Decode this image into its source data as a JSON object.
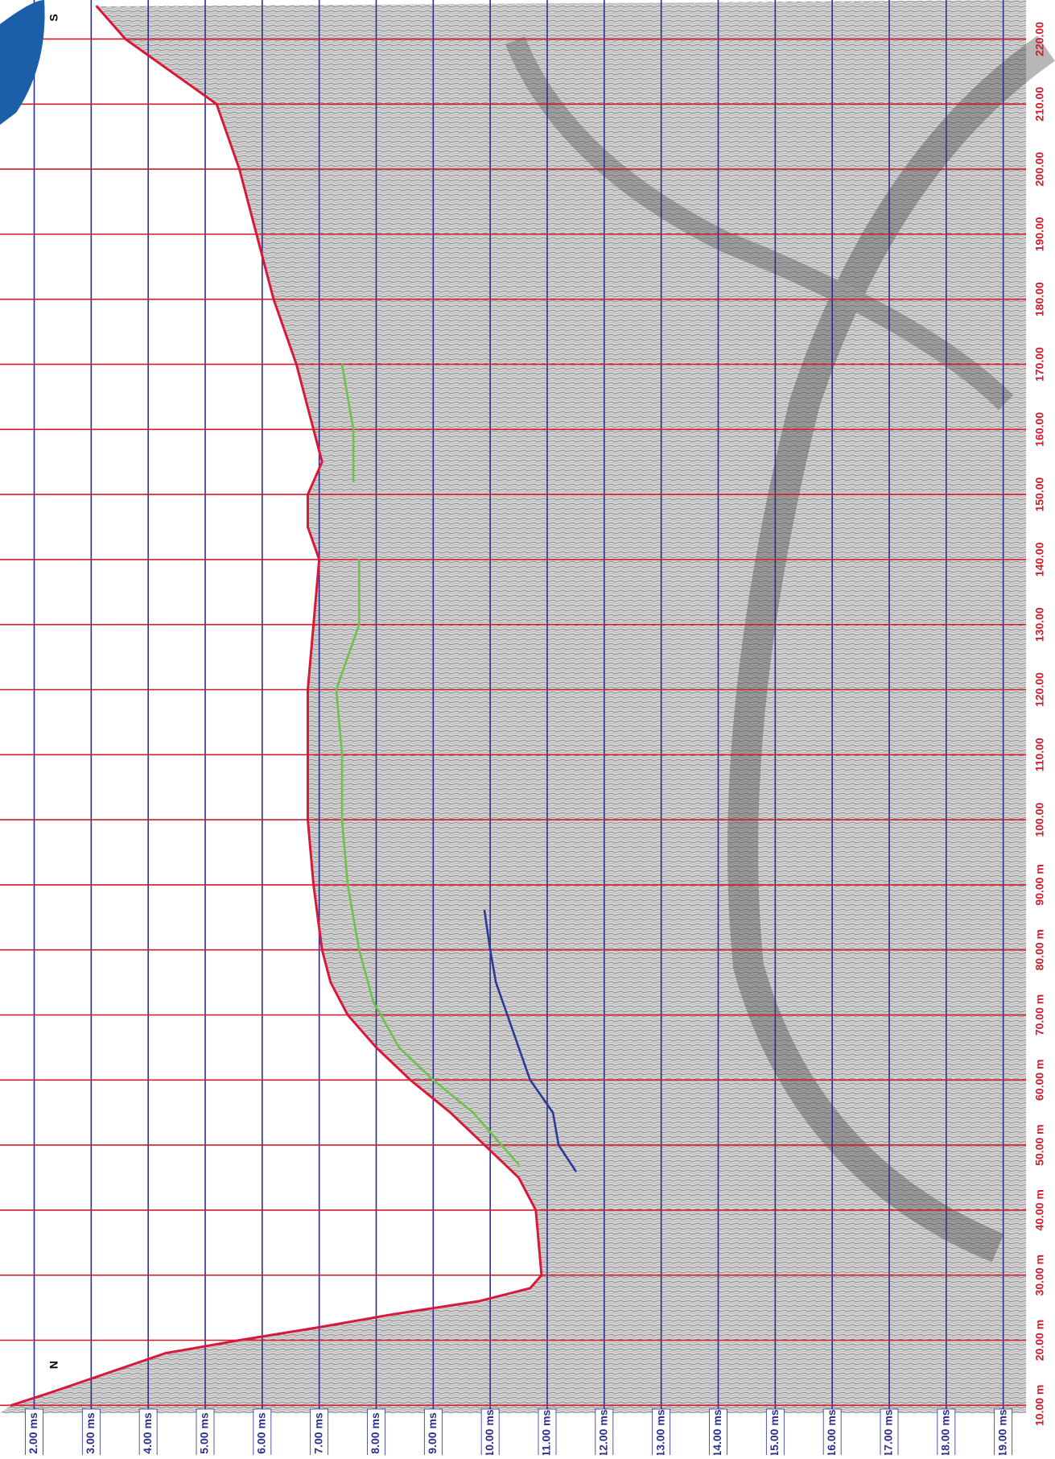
{
  "chart_data": {
    "type": "line",
    "annotations": [
      "S",
      "N"
    ],
    "xlim": [
      8.8,
      226
    ],
    "xticks": [
      {
        "value": 10,
        "label": "10.00 m"
      },
      {
        "value": 20,
        "label": "20.00 m"
      },
      {
        "value": 30,
        "label": "30.00 m"
      },
      {
        "value": 40,
        "label": "40.00 m"
      },
      {
        "value": 50,
        "label": "50.00 m"
      },
      {
        "value": 60,
        "label": "60.00 m"
      },
      {
        "value": 70,
        "label": "70.00 m"
      },
      {
        "value": 80,
        "label": "80.00 m"
      },
      {
        "value": 90,
        "label": "90.00 m"
      },
      {
        "value": 100,
        "label": "100.00"
      },
      {
        "value": 110,
        "label": "110.00"
      },
      {
        "value": 120,
        "label": "120.00"
      },
      {
        "value": 130,
        "label": "130.00"
      },
      {
        "value": 140,
        "label": "140.00"
      },
      {
        "value": 150,
        "label": "150.00"
      },
      {
        "value": 160,
        "label": "160.00"
      },
      {
        "value": 170,
        "label": "170.00"
      },
      {
        "value": 180,
        "label": "180.00"
      },
      {
        "value": 190,
        "label": "190.00"
      },
      {
        "value": 200,
        "label": "200.00"
      },
      {
        "value": 210,
        "label": "210.00"
      },
      {
        "value": 220,
        "label": "220.00"
      }
    ],
    "ylim": [
      1.4,
      19.4
    ],
    "yticks": [
      {
        "value": 2,
        "label": "2.00 ms"
      },
      {
        "value": 3,
        "label": "3.00 ms"
      },
      {
        "value": 4,
        "label": "4.00 ms"
      },
      {
        "value": 5,
        "label": "5.00 ms"
      },
      {
        "value": 6,
        "label": "6.00 ms"
      },
      {
        "value": 7,
        "label": "7.00 ms"
      },
      {
        "value": 8,
        "label": "8.00 ms"
      },
      {
        "value": 9,
        "label": "9.00 ms"
      },
      {
        "value": 10,
        "label": "10.00 ms"
      },
      {
        "value": 11,
        "label": "11.00 ms"
      },
      {
        "value": 12,
        "label": "12.00 ms"
      },
      {
        "value": 13,
        "label": "13.00 ms"
      },
      {
        "value": 14,
        "label": "14.00 ms"
      },
      {
        "value": 15,
        "label": "15.00 ms"
      },
      {
        "value": 16,
        "label": "16.00 ms"
      },
      {
        "value": 17,
        "label": "17.00 ms"
      },
      {
        "value": 18,
        "label": "18.00 ms"
      },
      {
        "value": 19,
        "label": "19.00 ms"
      }
    ],
    "x_grid_color": "#d01c2c",
    "y_grid_color": "#2a2f8f",
    "series": [
      {
        "color": "#d8193a",
        "x": [
          10,
          12,
          15,
          18,
          20,
          22,
          24,
          26,
          28,
          30,
          40,
          45,
          50,
          55,
          60,
          65,
          70,
          75,
          80,
          90,
          100,
          110,
          120,
          130,
          140,
          145,
          150,
          155,
          160,
          170,
          180,
          190,
          200,
          210,
          215,
          220,
          225
        ],
        "values": [
          1.6,
          2.3,
          3.3,
          4.3,
          5.6,
          7.0,
          8.3,
          9.8,
          10.7,
          10.9,
          10.8,
          10.5,
          9.9,
          9.3,
          8.6,
          8.0,
          7.5,
          7.2,
          7.05,
          6.9,
          6.8,
          6.8,
          6.8,
          6.9,
          7.0,
          6.8,
          6.8,
          7.05,
          6.9,
          6.6,
          6.2,
          5.9,
          5.6,
          5.2,
          4.4,
          3.6,
          3.1
        ]
      },
      {
        "color": "#6cc24a",
        "x": [
          47,
          50,
          55,
          60,
          65,
          72,
          80,
          90,
          100,
          110,
          120,
          125,
          130,
          140,
          null,
          152,
          160,
          170
        ],
        "values": [
          10.5,
          10.2,
          9.7,
          9.0,
          8.4,
          7.95,
          7.7,
          7.5,
          7.4,
          7.4,
          7.3,
          7.5,
          7.7,
          7.7,
          null,
          7.6,
          7.6,
          7.4
        ]
      },
      {
        "color": "#2b3a9a",
        "x": [
          46,
          50,
          55,
          60,
          65,
          70,
          75,
          80,
          86
        ],
        "values": [
          11.5,
          11.2,
          11.1,
          10.7,
          10.5,
          10.3,
          10.1,
          10.0,
          9.9
        ]
      }
    ]
  }
}
